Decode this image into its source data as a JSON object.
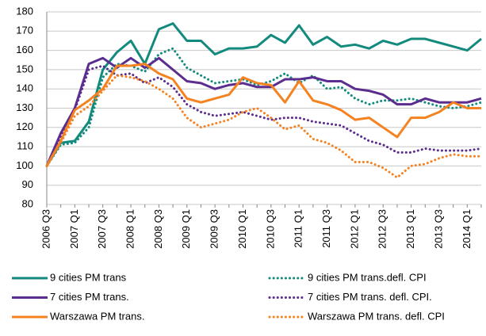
{
  "chart_data": {
    "type": "line",
    "categories": [
      "2006 Q3",
      null,
      "2007 Q1",
      null,
      "2007 Q3",
      null,
      "2008 Q1",
      null,
      "2008 Q3",
      null,
      "2009 Q1",
      null,
      "2009 Q3",
      null,
      "2010 Q1",
      null,
      "2010 Q3",
      null,
      "2011 Q1",
      null,
      "2011 Q3",
      null,
      "2012 Q1",
      null,
      "2012 Q3",
      null,
      "2013 Q1",
      null,
      "2013 Q3",
      null,
      "2014 Q1",
      null
    ],
    "ylim": [
      80,
      180
    ],
    "yticks": [
      80,
      90,
      100,
      110,
      120,
      130,
      140,
      150,
      160,
      170,
      180
    ],
    "grid": true,
    "series": [
      {
        "name": "9 cities PM trans",
        "color": "#138a7e",
        "style": "solid",
        "values": [
          100,
          112,
          113,
          123,
          150,
          159,
          165,
          153,
          171,
          174,
          165,
          165,
          158,
          161,
          161,
          162,
          168,
          164,
          173,
          163,
          167,
          162,
          163,
          161,
          165,
          163,
          166,
          166,
          164,
          162,
          160,
          166
        ]
      },
      {
        "name": "9 cities PM trans.defl. CPI",
        "color": "#138a7e",
        "style": "dotted",
        "values": [
          100,
          111,
          112,
          120,
          146,
          153,
          152,
          149,
          158,
          161,
          151,
          147,
          143,
          144,
          145,
          142,
          144,
          148,
          143,
          147,
          140,
          141,
          135,
          132,
          134,
          134,
          135,
          133,
          131,
          130,
          131,
          133
        ]
      },
      {
        "name": "7 cities PM trans.",
        "color": "#5b2d8e",
        "style": "solid",
        "values": [
          100,
          117,
          130,
          153,
          156,
          151,
          156,
          151,
          156,
          150,
          144,
          143,
          140,
          142,
          143,
          141,
          141,
          145,
          145,
          146,
          144,
          144,
          140,
          139,
          137,
          132,
          132,
          135,
          133,
          133,
          133,
          135
        ]
      },
      {
        "name": "7 cities PM trans. defl. CPI.",
        "color": "#5b2d8e",
        "style": "dotted",
        "values": [
          100,
          115,
          129,
          150,
          152,
          147,
          148,
          143,
          146,
          141,
          132,
          128,
          126,
          127,
          128,
          126,
          124,
          125,
          125,
          123,
          122,
          121,
          117,
          113,
          111,
          107,
          107,
          109,
          108,
          108,
          108,
          109
        ]
      },
      {
        "name": "Warszawa PM trans.",
        "color": "#f58220",
        "style": "solid",
        "values": [
          100,
          113,
          129,
          134,
          140,
          152,
          152,
          153,
          148,
          145,
          135,
          133,
          135,
          137,
          146,
          143,
          142,
          133,
          144,
          134,
          132,
          129,
          124,
          125,
          120,
          115,
          125,
          125,
          128,
          133,
          130,
          130
        ]
      },
      {
        "name": "Warszawa PM trans. defl. CPI",
        "color": "#f58220",
        "style": "dotted",
        "values": [
          100,
          112,
          126,
          131,
          139,
          147,
          146,
          144,
          140,
          135,
          125,
          120,
          122,
          124,
          128,
          130,
          125,
          119,
          121,
          114,
          112,
          108,
          102,
          102,
          99,
          94,
          100,
          101,
          104,
          106,
          105,
          105
        ]
      }
    ]
  }
}
